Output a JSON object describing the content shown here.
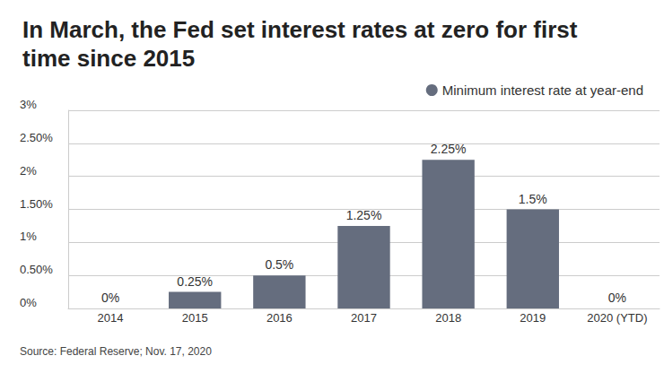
{
  "chart_data": {
    "type": "bar",
    "title": "In March, the Fed set interest rates at zero for first time since 2015",
    "source": "Source: Federal Reserve; Nov. 17, 2020",
    "categories": [
      "2014",
      "2015",
      "2016",
      "2017",
      "2018",
      "2019",
      "2020 (YTD)"
    ],
    "series": [
      {
        "name": "Minimum interest rate at year-end",
        "color": "#656d7e",
        "values": [
          0,
          0.25,
          0.5,
          1.25,
          2.25,
          1.5,
          0
        ],
        "value_labels": [
          "0%",
          "0.25%",
          "0.5%",
          "1.25%",
          "2.25%",
          "1.5%",
          "0%"
        ]
      }
    ],
    "ylim": [
      0,
      3
    ],
    "yticks": [
      {
        "value": 0,
        "label": "0%"
      },
      {
        "value": 0.5,
        "label": "0.50%"
      },
      {
        "value": 1,
        "label": "1%"
      },
      {
        "value": 1.5,
        "label": "1.50%"
      },
      {
        "value": 2,
        "label": "2%"
      },
      {
        "value": 2.5,
        "label": "2.50%"
      },
      {
        "value": 3,
        "label": "3%"
      }
    ],
    "grid": true,
    "legend": "upper right",
    "data_labels": true
  }
}
